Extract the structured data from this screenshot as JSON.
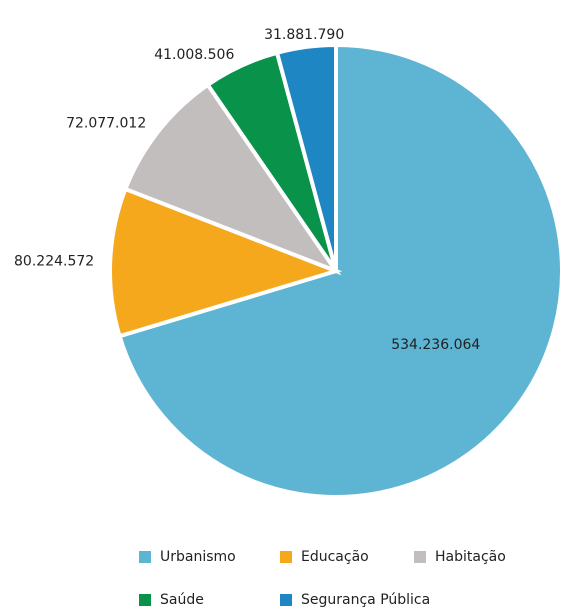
{
  "chart_data": {
    "type": "pie",
    "categories": [
      "Urbanismo",
      "Educação",
      "Habitação",
      "Saúde",
      "Segurança Pública"
    ],
    "values": [
      534236064,
      80224572,
      72077012,
      41008506,
      31881790
    ],
    "value_labels": [
      "534.236.064",
      "80.224.572",
      "72.077.012",
      "41.008.506",
      "31.881.790"
    ],
    "colors": [
      "#5eb4d3",
      "#f5a81c",
      "#c1bebd",
      "#08924a",
      "#1f86c4"
    ]
  }
}
